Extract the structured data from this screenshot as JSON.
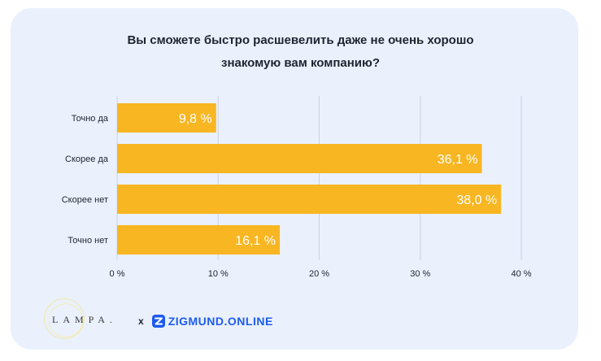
{
  "title_lines": [
    "Вы сможете быстро расшевелить даже не очень хорошо",
    "знакомую вам компанию?"
  ],
  "colors": {
    "bar": "#f8b622",
    "card_bg": "#eaf1fd",
    "grid": "#c9d3e3",
    "brand_blue": "#1d5bf0"
  },
  "chart_data": {
    "type": "bar",
    "orientation": "horizontal",
    "title": "Вы сможете быстро расшевелить даже не очень хорошо знакомую вам компанию?",
    "categories": [
      "Точно да",
      "Скорее да",
      "Скорее нет",
      "Точно нет"
    ],
    "values": [
      9.8,
      36.1,
      38.0,
      16.1
    ],
    "data_labels": [
      "9,8 %",
      "36,1 %",
      "38,0 %",
      "16,1 %"
    ],
    "xlim": [
      0,
      40
    ],
    "ticks": [
      0,
      10,
      20,
      30,
      40
    ],
    "tick_labels": [
      "0 %",
      "10 %",
      "20 %",
      "30 %",
      "40 %"
    ],
    "grid": true,
    "xlabel": "",
    "ylabel": ""
  },
  "footer": {
    "lampa": "LAMPA.",
    "times": "x",
    "zigmund": "ZIGMUND.ONLINE",
    "zigmund_icon": "zigmund-logo-icon"
  }
}
